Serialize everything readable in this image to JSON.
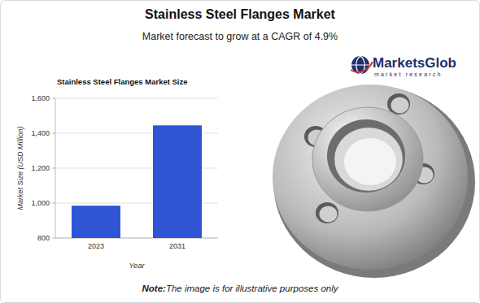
{
  "header": {
    "title": "Stainless Steel Flanges Market",
    "subtitle": "Market forecast to grow at a CAGR of 4.9%"
  },
  "logo": {
    "name": "MarketsGlob",
    "tagline": "market research"
  },
  "note": {
    "label": "Note:",
    "text": "The image is for illustrative purposes only"
  },
  "chart_data": {
    "type": "bar",
    "title": "Stainless Steel Flanges Market Size",
    "x_label": "Year",
    "y_label": "Market Size (USD Million)",
    "categories": [
      "2023",
      "2031"
    ],
    "values": [
      985,
      1445
    ],
    "color": "#2f55d4",
    "ylim": [
      800,
      1600
    ],
    "yticks": [
      800,
      {
        "value": 1000,
        "label": "1,000"
      },
      {
        "value": 1200,
        "label": "1,200"
      },
      {
        "value": 1400,
        "label": "1,400"
      },
      {
        "value": 1600,
        "label": "1,600"
      }
    ],
    "grid": true
  }
}
